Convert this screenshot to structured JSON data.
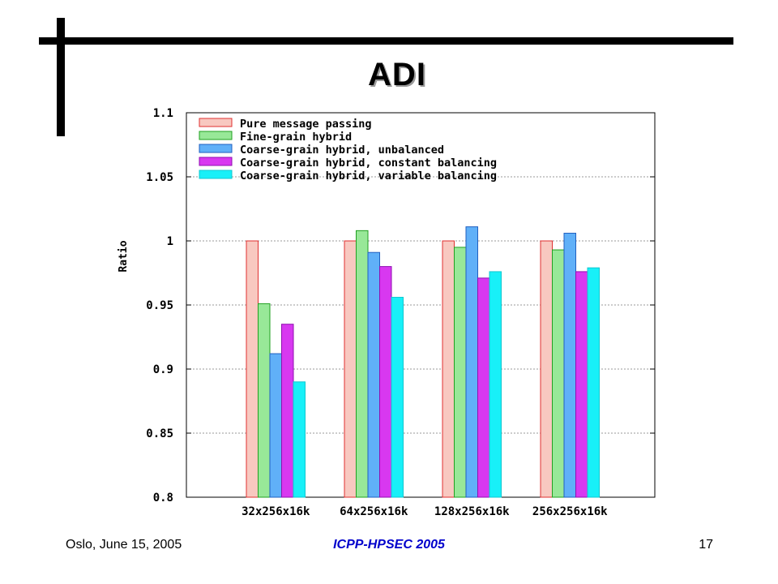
{
  "slide": {
    "title": "ADI",
    "footer_left": "Oslo, June 15, 2005",
    "footer_center": "ICPP-HPSEC 2005",
    "footer_right": "17"
  },
  "chart_data": {
    "type": "bar",
    "title": "",
    "xlabel": "",
    "ylabel": "Ratio",
    "ylim": [
      0.8,
      1.1
    ],
    "yticks": [
      0.8,
      0.85,
      0.9,
      0.95,
      1,
      1.05,
      1.1
    ],
    "ytick_labels": [
      "0.8",
      "0.85",
      "0.9",
      "0.95",
      "1",
      "1.05",
      "1.1"
    ],
    "grid": true,
    "legend_position": "top-left",
    "categories": [
      "32x256x16k",
      "64x256x16k",
      "128x256x16k",
      "256x256x16k"
    ],
    "series": [
      {
        "name": "Pure message passing",
        "fill": "#f8c8c0",
        "stroke": "#e03030",
        "values": [
          1.0,
          1.0,
          1.0,
          1.0
        ]
      },
      {
        "name": "Fine-grain hybrid",
        "fill": "#98e898",
        "stroke": "#20a020",
        "values": [
          0.951,
          1.008,
          0.995,
          0.993
        ]
      },
      {
        "name": "Coarse-grain hybrid, unbalanced",
        "fill": "#60b0f8",
        "stroke": "#2060c0",
        "values": [
          0.912,
          0.991,
          1.011,
          1.006
        ]
      },
      {
        "name": "Coarse-grain hybrid, constant balancing",
        "fill": "#d838f0",
        "stroke": "#9010b0",
        "values": [
          0.935,
          0.98,
          0.971,
          0.976
        ]
      },
      {
        "name": "Coarse-grain hybrid, variable balancing",
        "fill": "#18f0f8",
        "stroke": "#10c8d0",
        "values": [
          0.89,
          0.956,
          0.976,
          0.979
        ]
      }
    ]
  }
}
